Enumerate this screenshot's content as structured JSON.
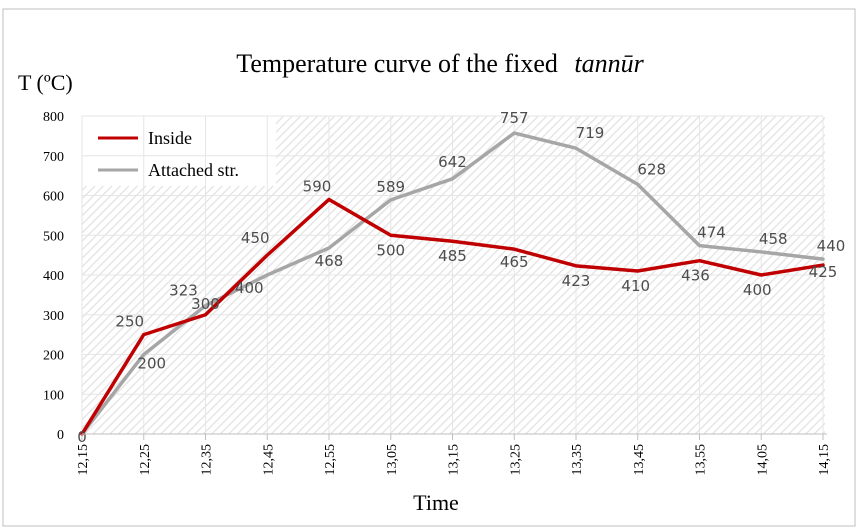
{
  "chart_data": {
    "type": "line",
    "title": "Temperature curve of the fixed",
    "title_italic": "tannūr",
    "ylabel": "T (ºC)",
    "xlabel": "Time",
    "ylim": [
      0,
      800
    ],
    "yticks": [
      0,
      100,
      200,
      300,
      400,
      500,
      600,
      700,
      800
    ],
    "categories": [
      "12,15",
      "12,25",
      "12,35",
      "12,45",
      "12,55",
      "13,05",
      "13,15",
      "13,25",
      "13,35",
      "13,45",
      "13,55",
      "14,05",
      "14,15"
    ],
    "legend_position": "top-left",
    "series": [
      {
        "name": "Inside",
        "color": "#c00000",
        "values": [
          0,
          250,
          300,
          450,
          590,
          500,
          485,
          465,
          423,
          410,
          436,
          400,
          425
        ]
      },
      {
        "name": "Attached str.",
        "color": "#a6a6a6",
        "values": [
          0,
          200,
          323,
          400,
          468,
          589,
          642,
          757,
          719,
          628,
          474,
          458,
          440
        ]
      }
    ]
  }
}
